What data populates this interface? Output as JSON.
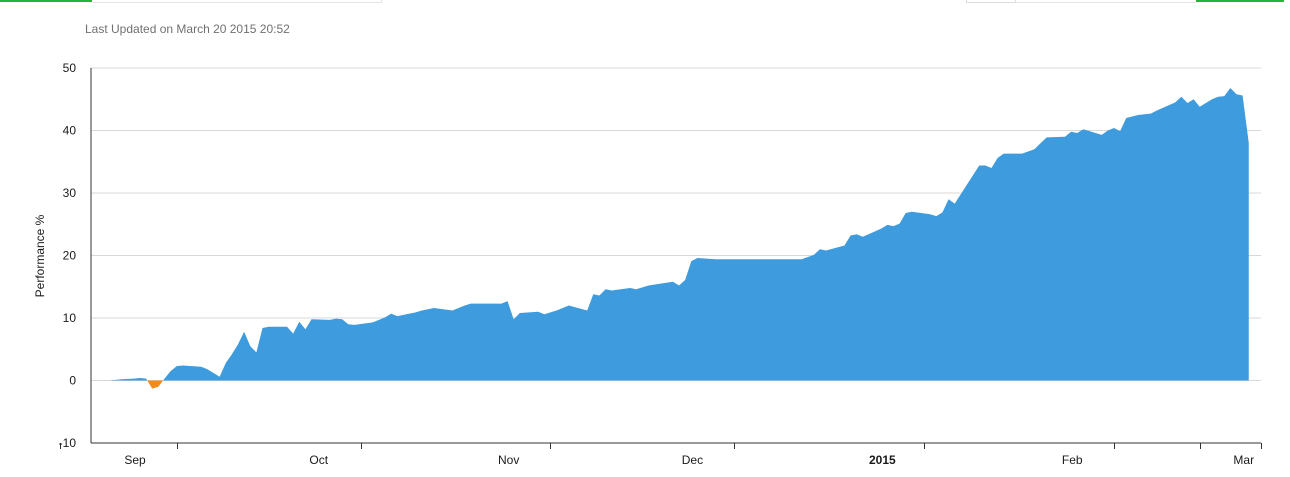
{
  "header": {
    "last_updated": "Last Updated on March 20 2015 20:52"
  },
  "chart_data": {
    "type": "area",
    "ylabel": "Performance %",
    "ylim": [
      -10,
      50
    ],
    "y_ticks": [
      -10,
      0,
      10,
      20,
      30,
      40,
      50
    ],
    "grid": true,
    "x_domain": [
      "2014-09-01",
      "2015-03-11"
    ],
    "x_tick_labels": [
      {
        "date": "2014-09-01",
        "label": "Sep",
        "bold": false
      },
      {
        "date": "2014-10-01",
        "label": "Oct",
        "bold": false
      },
      {
        "date": "2014-11-01",
        "label": "Nov",
        "bold": false
      },
      {
        "date": "2014-12-01",
        "label": "Dec",
        "bold": false
      },
      {
        "date": "2015-01-01",
        "label": "2015",
        "bold": true
      },
      {
        "date": "2015-02-01",
        "label": "Feb",
        "bold": false
      },
      {
        "date": "2015-03-01",
        "label": "Mar",
        "bold": false
      }
    ],
    "x_tick_marks": [
      "2014-08-27",
      "2014-09-15",
      "2014-10-15",
      "2014-11-15",
      "2014-12-15",
      "2015-01-15",
      "2015-02-15",
      "2015-03-01",
      "2015-03-11"
    ],
    "colors": {
      "positive": "#3d9bde",
      "negative": "#f08c1e"
    },
    "series": [
      {
        "points": [
          [
            "2014-08-27",
            0
          ],
          [
            "2014-09-04",
            0
          ],
          [
            "2014-09-06",
            0.2
          ],
          [
            "2014-09-08",
            0.3
          ],
          [
            "2014-09-09",
            0.4
          ],
          [
            "2014-09-10",
            0.3
          ],
          [
            "2014-09-11",
            -1.3
          ],
          [
            "2014-09-12",
            -1.0
          ],
          [
            "2014-09-13",
            0.3
          ],
          [
            "2014-09-14",
            1.5
          ],
          [
            "2014-09-15",
            2.3
          ],
          [
            "2014-09-16",
            2.4
          ],
          [
            "2014-09-19",
            2.2
          ],
          [
            "2014-09-20",
            1.8
          ],
          [
            "2014-09-21",
            1.2
          ],
          [
            "2014-09-22",
            0.6
          ],
          [
            "2014-09-23",
            2.8
          ],
          [
            "2014-09-24",
            4.2
          ],
          [
            "2014-09-25",
            5.8
          ],
          [
            "2014-09-26",
            7.8
          ],
          [
            "2014-09-27",
            5.5
          ],
          [
            "2014-09-28",
            4.5
          ],
          [
            "2014-09-29",
            8.4
          ],
          [
            "2014-09-30",
            8.6
          ],
          [
            "2014-10-03",
            8.6
          ],
          [
            "2014-10-04",
            7.5
          ],
          [
            "2014-10-05",
            9.4
          ],
          [
            "2014-10-06",
            8.2
          ],
          [
            "2014-10-07",
            9.8
          ],
          [
            "2014-10-10",
            9.7
          ],
          [
            "2014-10-11",
            9.9
          ],
          [
            "2014-10-12",
            9.8
          ],
          [
            "2014-10-13",
            9.0
          ],
          [
            "2014-10-14",
            8.9
          ],
          [
            "2014-10-17",
            9.3
          ],
          [
            "2014-10-19",
            10.1
          ],
          [
            "2014-10-20",
            10.7
          ],
          [
            "2014-10-21",
            10.3
          ],
          [
            "2014-10-24",
            10.9
          ],
          [
            "2014-10-25",
            11.2
          ],
          [
            "2014-10-27",
            11.6
          ],
          [
            "2014-10-30",
            11.2
          ],
          [
            "2014-11-01",
            12.0
          ],
          [
            "2014-11-02",
            12.3
          ],
          [
            "2014-11-07",
            12.3
          ],
          [
            "2014-11-08",
            12.7
          ],
          [
            "2014-11-09",
            9.8
          ],
          [
            "2014-11-10",
            10.8
          ],
          [
            "2014-11-13",
            11.0
          ],
          [
            "2014-11-14",
            10.6
          ],
          [
            "2014-11-16",
            11.2
          ],
          [
            "2014-11-18",
            12.0
          ],
          [
            "2014-11-21",
            11.2
          ],
          [
            "2014-11-22",
            13.8
          ],
          [
            "2014-11-23",
            13.6
          ],
          [
            "2014-11-24",
            14.6
          ],
          [
            "2014-11-25",
            14.4
          ],
          [
            "2014-11-28",
            14.8
          ],
          [
            "2014-11-29",
            14.6
          ],
          [
            "2014-12-01",
            15.2
          ],
          [
            "2014-12-03",
            15.5
          ],
          [
            "2014-12-05",
            15.8
          ],
          [
            "2014-12-06",
            15.2
          ],
          [
            "2014-12-07",
            16.1
          ],
          [
            "2014-12-08",
            19.1
          ],
          [
            "2014-12-09",
            19.6
          ],
          [
            "2014-12-12",
            19.4
          ],
          [
            "2014-12-26",
            19.4
          ],
          [
            "2014-12-28",
            20.1
          ],
          [
            "2014-12-29",
            21.0
          ],
          [
            "2014-12-30",
            20.8
          ],
          [
            "2015-01-02",
            21.6
          ],
          [
            "2015-01-03",
            23.2
          ],
          [
            "2015-01-04",
            23.4
          ],
          [
            "2015-01-05",
            23.0
          ],
          [
            "2015-01-08",
            24.3
          ],
          [
            "2015-01-09",
            24.9
          ],
          [
            "2015-01-10",
            24.7
          ],
          [
            "2015-01-11",
            25.1
          ],
          [
            "2015-01-12",
            26.8
          ],
          [
            "2015-01-13",
            27.0
          ],
          [
            "2015-01-16",
            26.6
          ],
          [
            "2015-01-17",
            26.3
          ],
          [
            "2015-01-18",
            26.9
          ],
          [
            "2015-01-19",
            29.0
          ],
          [
            "2015-01-20",
            28.3
          ],
          [
            "2015-01-24",
            34.4
          ],
          [
            "2015-01-25",
            34.4
          ],
          [
            "2015-01-26",
            34.0
          ],
          [
            "2015-01-27",
            35.6
          ],
          [
            "2015-01-28",
            36.3
          ],
          [
            "2015-01-31",
            36.3
          ],
          [
            "2015-02-02",
            37.0
          ],
          [
            "2015-02-04",
            38.9
          ],
          [
            "2015-02-07",
            39.0
          ],
          [
            "2015-02-08",
            39.8
          ],
          [
            "2015-02-09",
            39.6
          ],
          [
            "2015-02-10",
            40.2
          ],
          [
            "2015-02-13",
            39.3
          ],
          [
            "2015-02-14",
            40.0
          ],
          [
            "2015-02-15",
            40.4
          ],
          [
            "2015-02-16",
            39.9
          ],
          [
            "2015-02-17",
            42.0
          ],
          [
            "2015-02-19",
            42.5
          ],
          [
            "2015-02-21",
            42.7
          ],
          [
            "2015-02-22",
            43.2
          ],
          [
            "2015-02-25",
            44.5
          ],
          [
            "2015-02-26",
            45.4
          ],
          [
            "2015-02-27",
            44.4
          ],
          [
            "2015-02-28",
            45.0
          ],
          [
            "2015-03-01",
            43.8
          ],
          [
            "2015-03-03",
            45.0
          ],
          [
            "2015-03-04",
            45.4
          ],
          [
            "2015-03-05",
            45.5
          ],
          [
            "2015-03-06",
            46.8
          ],
          [
            "2015-03-07",
            45.8
          ],
          [
            "2015-03-08",
            45.6
          ],
          [
            "2015-03-09",
            38.0
          ]
        ]
      }
    ]
  }
}
